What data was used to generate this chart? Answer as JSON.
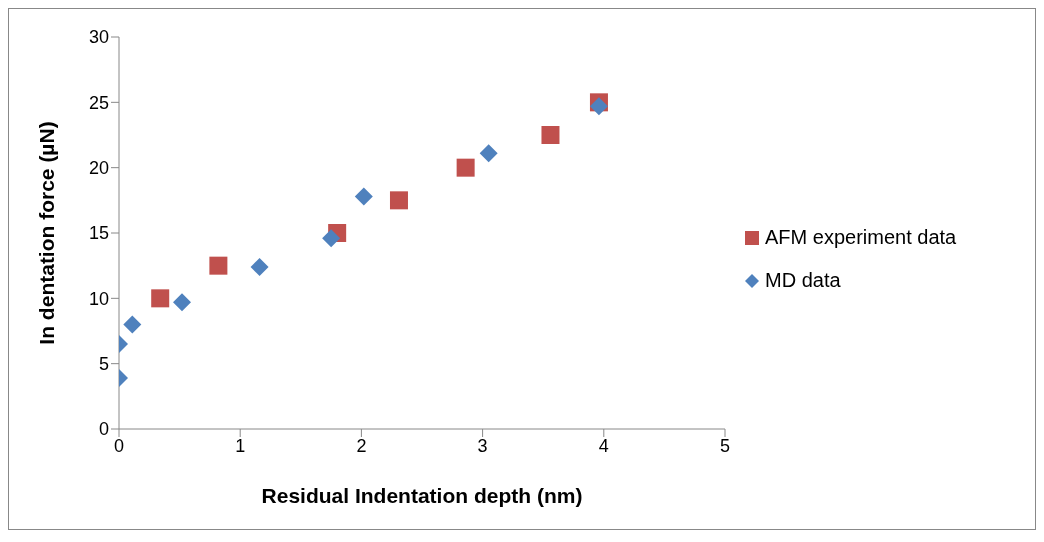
{
  "chart_data": {
    "type": "scatter",
    "xlabel": "Residual Indentation depth (nm)",
    "ylabel": "In dentation force (µN)",
    "xlim": [
      0,
      5
    ],
    "xticks": [
      0,
      1,
      2,
      3,
      4,
      5
    ],
    "ylim": [
      0,
      30
    ],
    "yticks": [
      0,
      5,
      10,
      15,
      20,
      25,
      30
    ],
    "grid": false,
    "legend": "right",
    "series": [
      {
        "name": "AFM experiment data",
        "color": "#c0504d",
        "marker": "square",
        "x": [
          0.34,
          0.82,
          1.8,
          2.31,
          2.86,
          3.56,
          3.96
        ],
        "values": [
          10,
          12.5,
          15,
          17.5,
          20,
          22.5,
          25
        ]
      },
      {
        "name": "MD data",
        "color": "#4f81bd",
        "marker": "diamond",
        "x": [
          0,
          0,
          0.11,
          0.52,
          1.16,
          1.75,
          2.02,
          3.05,
          3.96
        ],
        "values": [
          3.9,
          6.5,
          8,
          9.7,
          12.4,
          14.6,
          17.8,
          21.1,
          24.7
        ]
      }
    ]
  }
}
